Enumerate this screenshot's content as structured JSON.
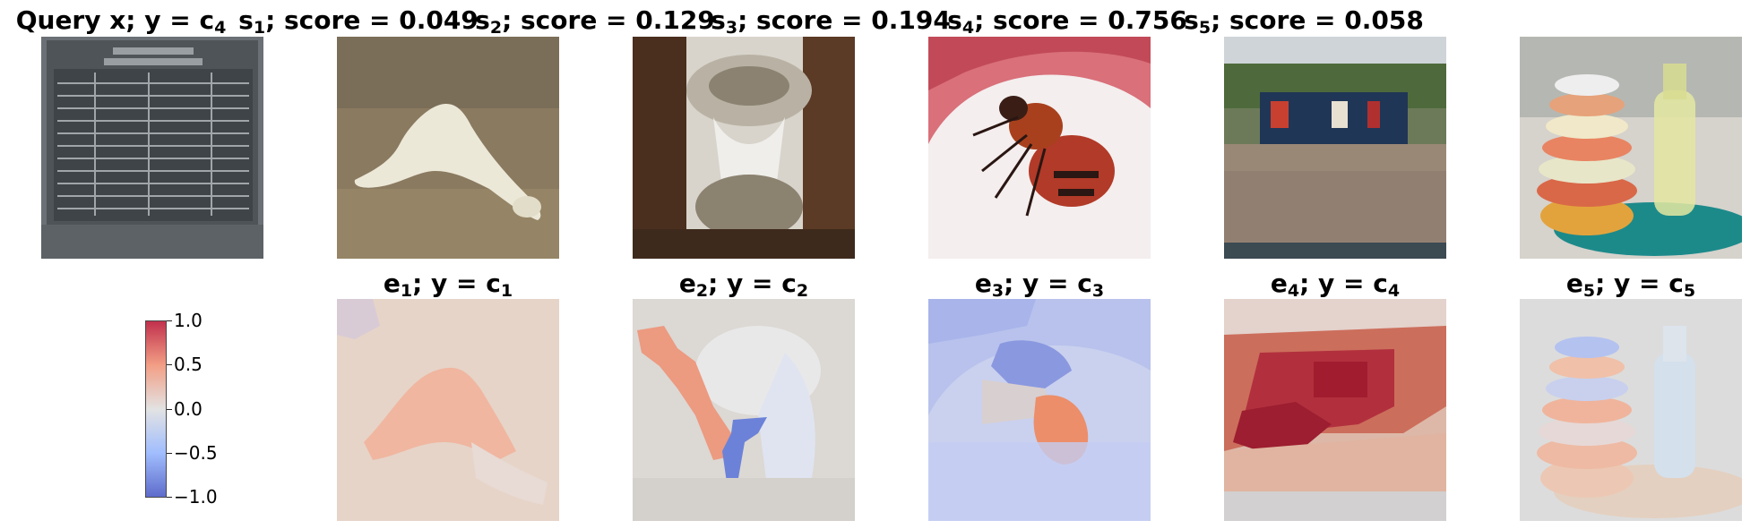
{
  "query": {
    "title": "Query x; y = c",
    "sub": "4"
  },
  "scores": [
    {
      "label": "s",
      "sub": "1",
      "suffix": "; score = 0.049"
    },
    {
      "label": "s",
      "sub": "2",
      "suffix": "; score = 0.129"
    },
    {
      "label": "s",
      "sub": "3",
      "suffix": "; score = 0.194"
    },
    {
      "label": "s",
      "sub": "4",
      "suffix": "; score = 0.756"
    },
    {
      "label": "s",
      "sub": "5",
      "suffix": "; score = 0.058"
    }
  ],
  "explanations": [
    {
      "label": "e",
      "sub": "1",
      "mid": "; y = c",
      "sub2": "1"
    },
    {
      "label": "e",
      "sub": "2",
      "mid": "; y = c",
      "sub2": "2"
    },
    {
      "label": "e",
      "sub": "3",
      "mid": "; y = c",
      "sub2": "3"
    },
    {
      "label": "e",
      "sub": "4",
      "mid": "; y = c",
      "sub2": "4"
    },
    {
      "label": "e",
      "sub": "5",
      "mid": "; y = c",
      "sub2": "5"
    }
  ],
  "colorbar": {
    "ticks": [
      "1.0",
      "0.5",
      "0.0",
      "−0.5",
      "−1.0"
    ],
    "range": [
      -1.0,
      1.0
    ],
    "colormap": "coolwarm",
    "colors": {
      "high": "#b40426",
      "mid": "#dddddd",
      "low": "#3b4cc0"
    }
  }
}
